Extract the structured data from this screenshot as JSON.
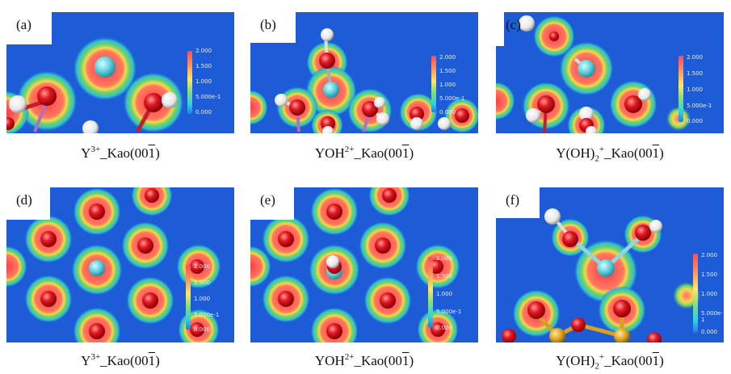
{
  "figure": {
    "panels": [
      {
        "label": "(a)",
        "species_html": "Y<sup>3+</sup>",
        "surface": "_Kao(00",
        "bar_digit": "1",
        "close": ")",
        "colorbar": [
          "2.000",
          "1.500",
          "1.000",
          "5.000e-1",
          "0.000"
        ]
      },
      {
        "label": "(b)",
        "species_html": "YOH<sup>2+</sup>",
        "surface": "_Kao(00",
        "bar_digit": "1",
        "close": ")",
        "colorbar": [
          "2.000",
          "1.500",
          "1.000",
          "5.000e-1",
          "0.000"
        ]
      },
      {
        "label": "(c)",
        "species_html": "Y(OH)<sub>2</sub><sup>+</sup>",
        "surface": "_Kao(00",
        "bar_digit": "1",
        "close": ")",
        "colorbar": [
          "2.000",
          "1.500",
          "1.000",
          "5.000e-1",
          "0.000"
        ]
      },
      {
        "label": "(d)",
        "species_html": "Y<sup>3+</sup>",
        "surface": "_Kao(00",
        "bar_digit": "1",
        "close": ")",
        "colorbar": [
          "2.000",
          "1.500",
          "1.000",
          "5.000e-1",
          "0.000"
        ]
      },
      {
        "label": "(e)",
        "species_html": "YOH<sup>2+</sup>",
        "surface": "_Kao(00",
        "bar_digit": "1",
        "close": ")",
        "colorbar": [
          "2.000",
          "1.500",
          "1.000",
          "5.000e-1",
          "0.000"
        ]
      },
      {
        "label": "(f)",
        "species_html": "Y(OH)<sub>2</sub><sup>+</sup>",
        "surface": "_Kao(00",
        "bar_digit": "1",
        "close": ")",
        "colorbar": [
          "2.000",
          "1.500",
          "1.000",
          "5.000e-1",
          "0.000"
        ]
      }
    ]
  },
  "colors": {
    "background": "#1e5bd6",
    "oxygen": "#e0141c",
    "hydrogen": "#f4f4f4",
    "yttrium": "#5fd3e0",
    "metal": "#d8a020"
  }
}
